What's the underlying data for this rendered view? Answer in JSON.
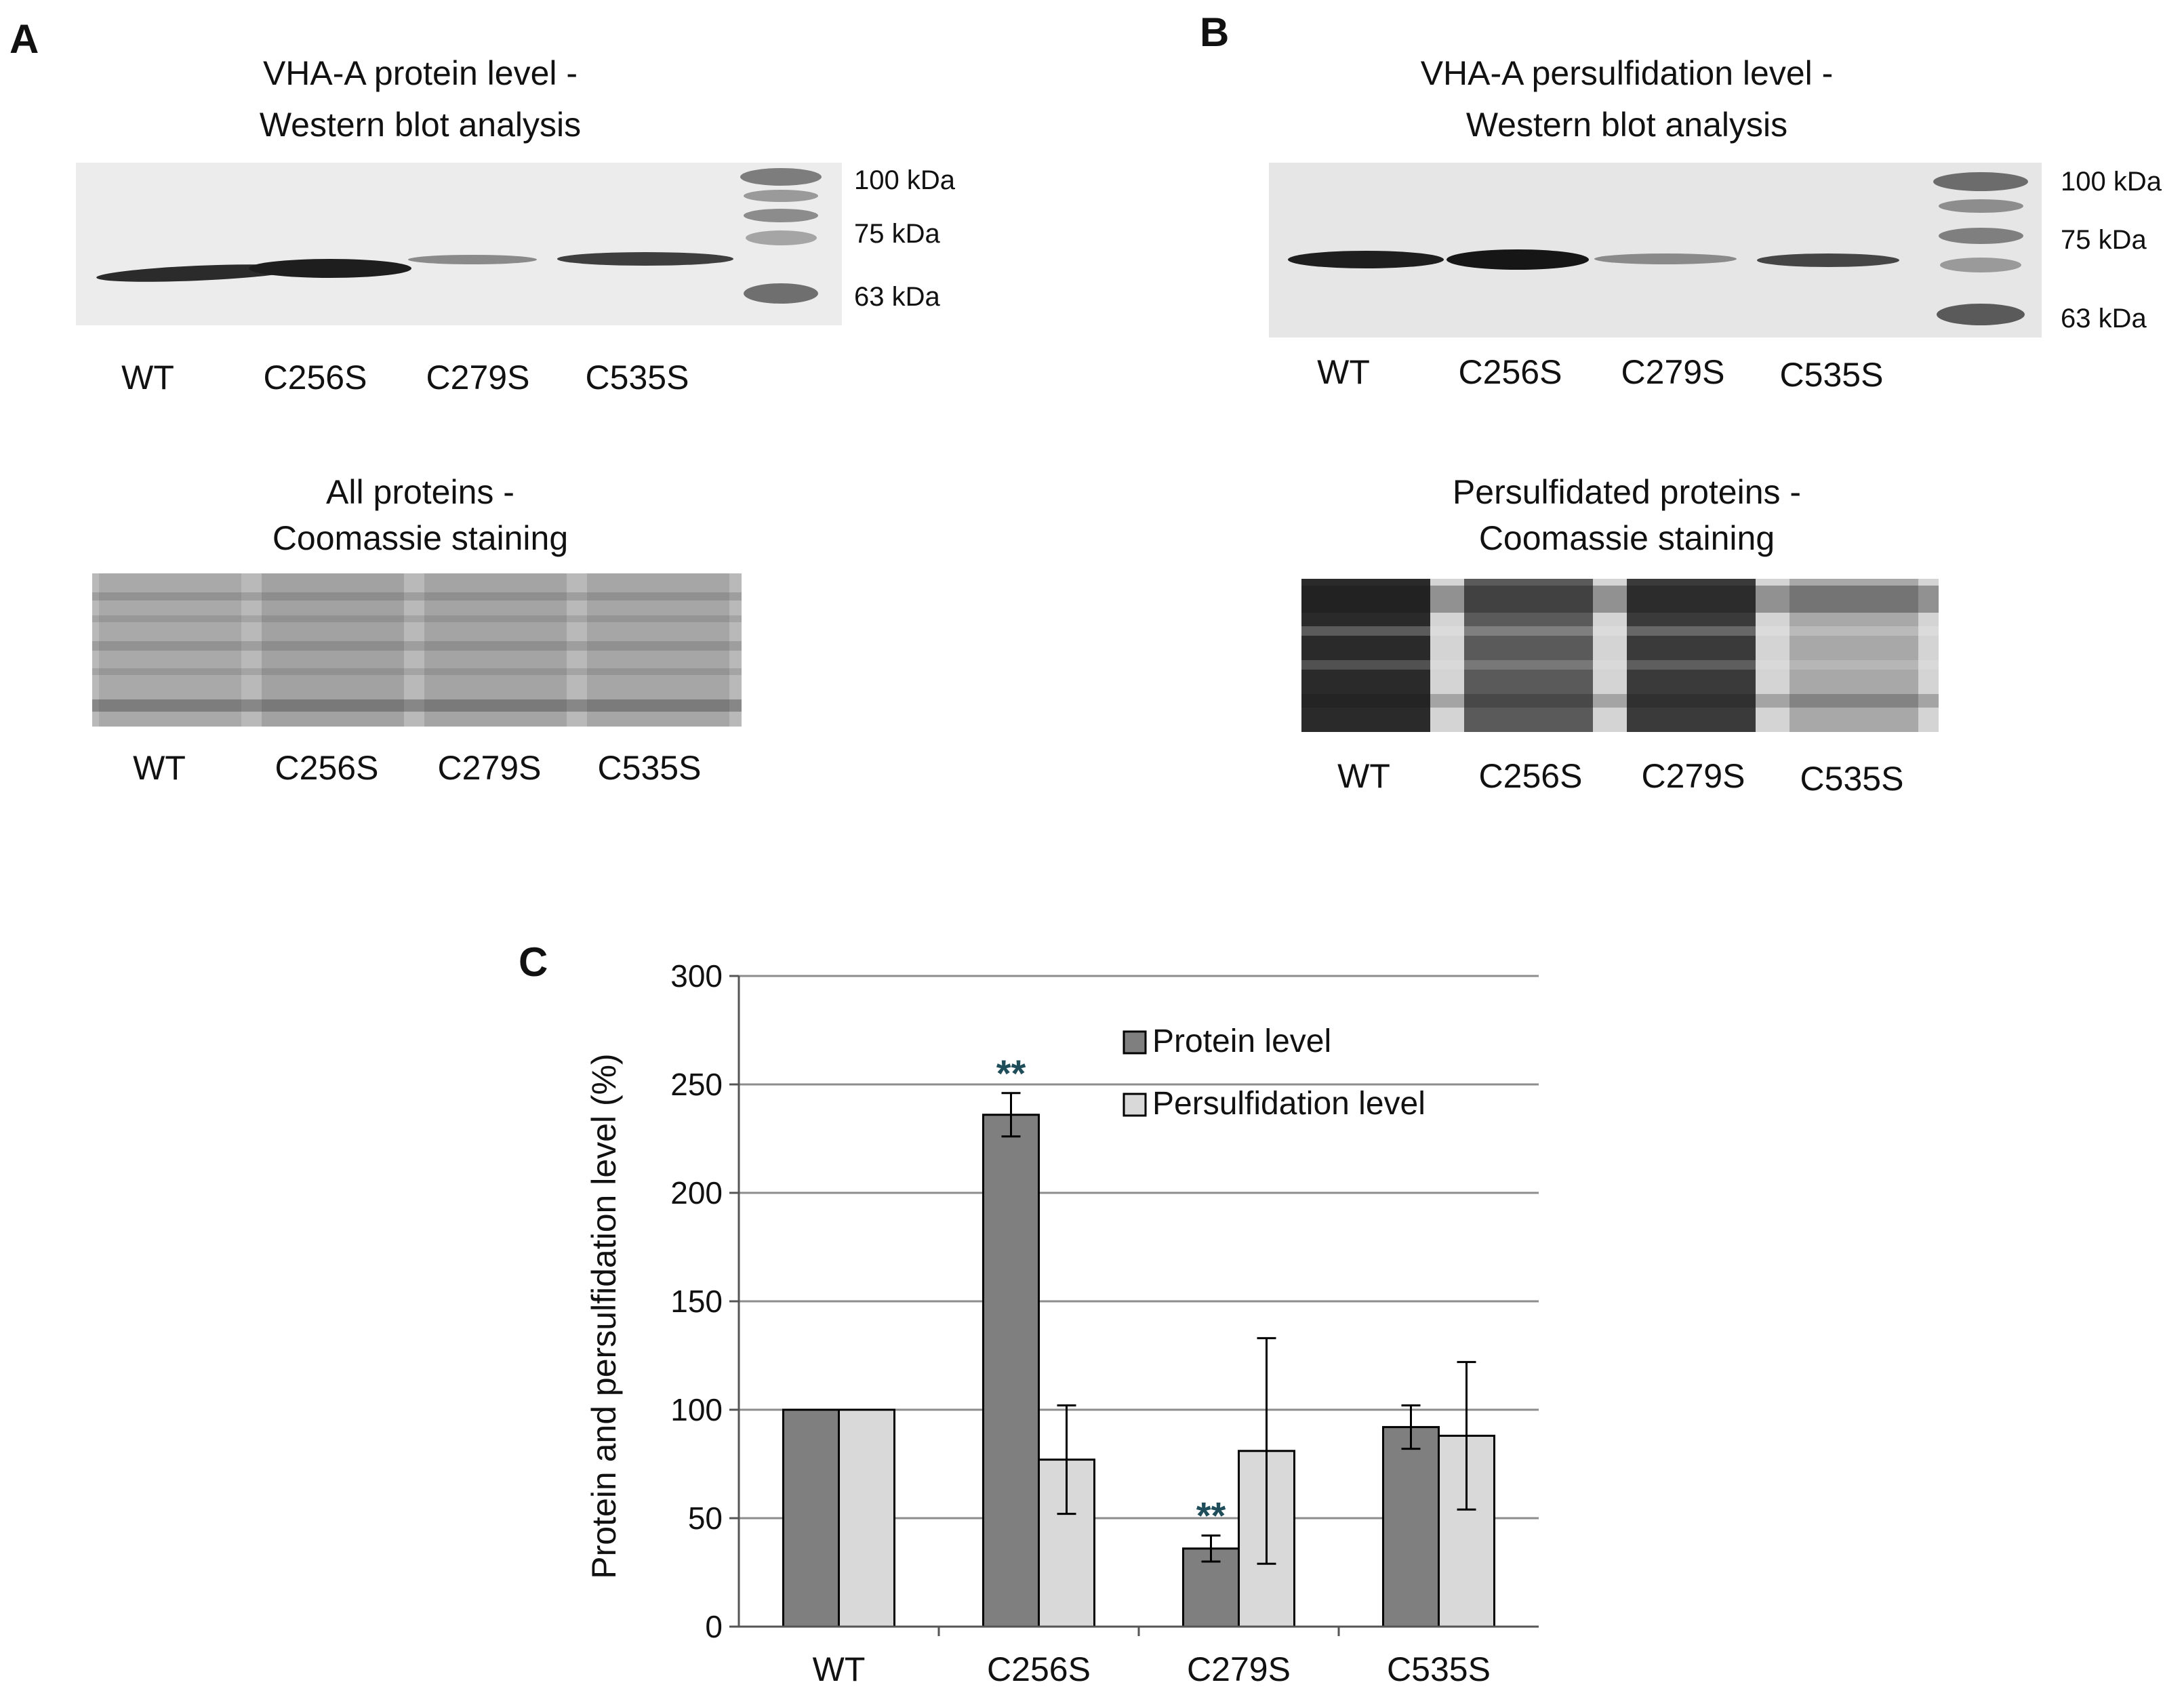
{
  "panels": {
    "a": {
      "letter": "A",
      "western": {
        "title_line1": "VHA-A protein level -",
        "title_line2": "Western blot analysis",
        "markers": [
          "100 kDa",
          "75 kDa",
          "63 kDa"
        ],
        "lanes": [
          "WT",
          "C256S",
          "C279S",
          "C535S"
        ]
      },
      "coomassie": {
        "title_line1": "All proteins -",
        "title_line2": "Coomassie staining",
        "lanes": [
          "WT",
          "C256S",
          "C279S",
          "C535S"
        ]
      }
    },
    "b": {
      "letter": "B",
      "western": {
        "title_line1": "VHA-A persulfidation level -",
        "title_line2": "Western blot analysis",
        "markers": [
          "100 kDa",
          "75 kDa",
          "63 kDa"
        ],
        "lanes": [
          "WT",
          "C256S",
          "C279S",
          "C535S"
        ]
      },
      "coomassie": {
        "title_line1": "Persulfidated proteins -",
        "title_line2": "Coomassie staining",
        "lanes": [
          "WT",
          "C256S",
          "C279S",
          "C535S"
        ]
      }
    },
    "c": {
      "letter": "C"
    }
  },
  "chart_data": {
    "type": "bar",
    "title": "",
    "ylabel": "Protein and persulfidation level (%)",
    "xlabel": "",
    "categories": [
      "WT",
      "C256S",
      "C279S",
      "C535S"
    ],
    "ylim": [
      0,
      300
    ],
    "yticks": [
      0,
      50,
      100,
      150,
      200,
      250,
      300
    ],
    "grid": true,
    "legend_position": "top-right",
    "series": [
      {
        "name": "Protein level",
        "values": [
          100,
          236,
          36,
          92
        ],
        "errors": [
          0,
          10,
          6,
          10
        ],
        "color": "#7f7f7f"
      },
      {
        "name": "Persulfidation level",
        "values": [
          100,
          77,
          81,
          88
        ],
        "errors": [
          0,
          25,
          52,
          34
        ],
        "color": "#d9d9d9"
      }
    ],
    "annotations": [
      {
        "text": "**",
        "category": "C256S",
        "series": "Protein level"
      },
      {
        "text": "**",
        "category": "C279S",
        "series": "Protein level"
      }
    ]
  }
}
